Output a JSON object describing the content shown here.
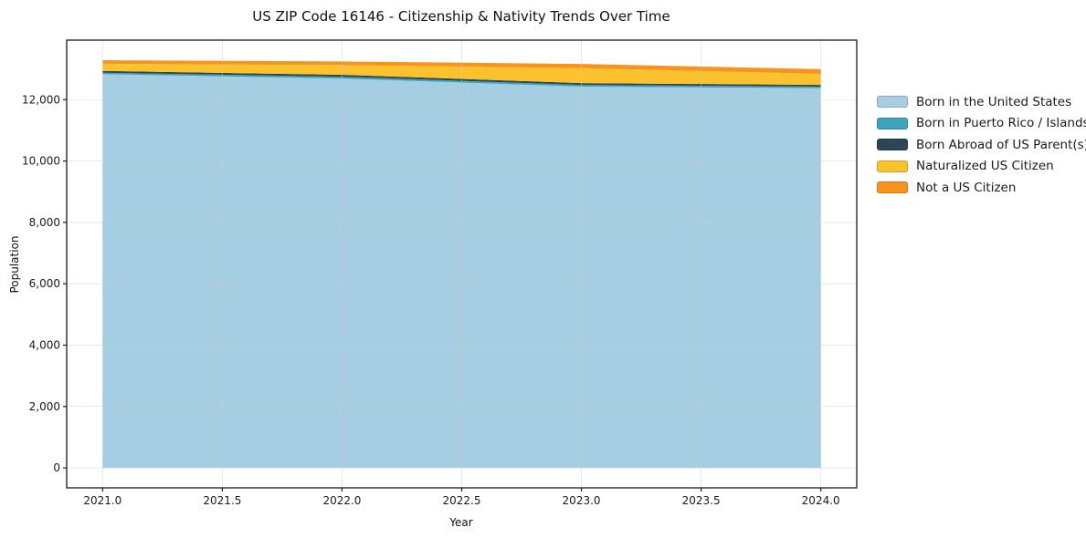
{
  "chart_data": {
    "type": "area",
    "stacked": true,
    "title": "US ZIP Code 16146 - Citizenship & Nativity Trends Over Time",
    "xlabel": "Year",
    "ylabel": "Population",
    "x": [
      2021,
      2022,
      2023,
      2024
    ],
    "series": [
      {
        "name": "Born in the United States",
        "color": "#A6CEE3",
        "values": [
          12830,
          12690,
          12425,
          12375
        ]
      },
      {
        "name": "Born in Puerto Rico / Islands",
        "color": "#3EA4BE",
        "values": [
          50,
          55,
          55,
          50
        ]
      },
      {
        "name": "Born Abroad of US Parent(s)",
        "color": "#2B4756",
        "values": [
          55,
          65,
          60,
          55
        ]
      },
      {
        "name": "Naturalized US Citizen",
        "color": "#FCC22D",
        "values": [
          235,
          315,
          485,
          360
        ]
      },
      {
        "name": "Not a US Citizen",
        "color": "#F7941E",
        "values": [
          115,
          120,
          140,
          155
        ]
      }
    ],
    "totals": [
      13285,
      13245,
      13165,
      12995
    ],
    "xticks": [
      2021.0,
      2021.5,
      2022.0,
      2022.5,
      2023.0,
      2023.5,
      2024.0
    ],
    "xtick_labels": [
      "2021.0",
      "2021.5",
      "2022.0",
      "2022.5",
      "2023.0",
      "2023.5",
      "2024.0"
    ],
    "yticks": [
      0,
      2000,
      4000,
      6000,
      8000,
      10000,
      12000
    ],
    "ytick_labels": [
      "0",
      "2,000",
      "4,000",
      "6,000",
      "8,000",
      "10,000",
      "12,000"
    ],
    "xlim": [
      2020.85,
      2024.15
    ],
    "ylim": [
      -650,
      13940
    ],
    "grid": true,
    "legend_position": "right",
    "colors": {
      "grid": "#cccccc",
      "spine": "#1a1a1a",
      "tick_text": "#1a1a1a",
      "background": "#ffffff"
    }
  }
}
